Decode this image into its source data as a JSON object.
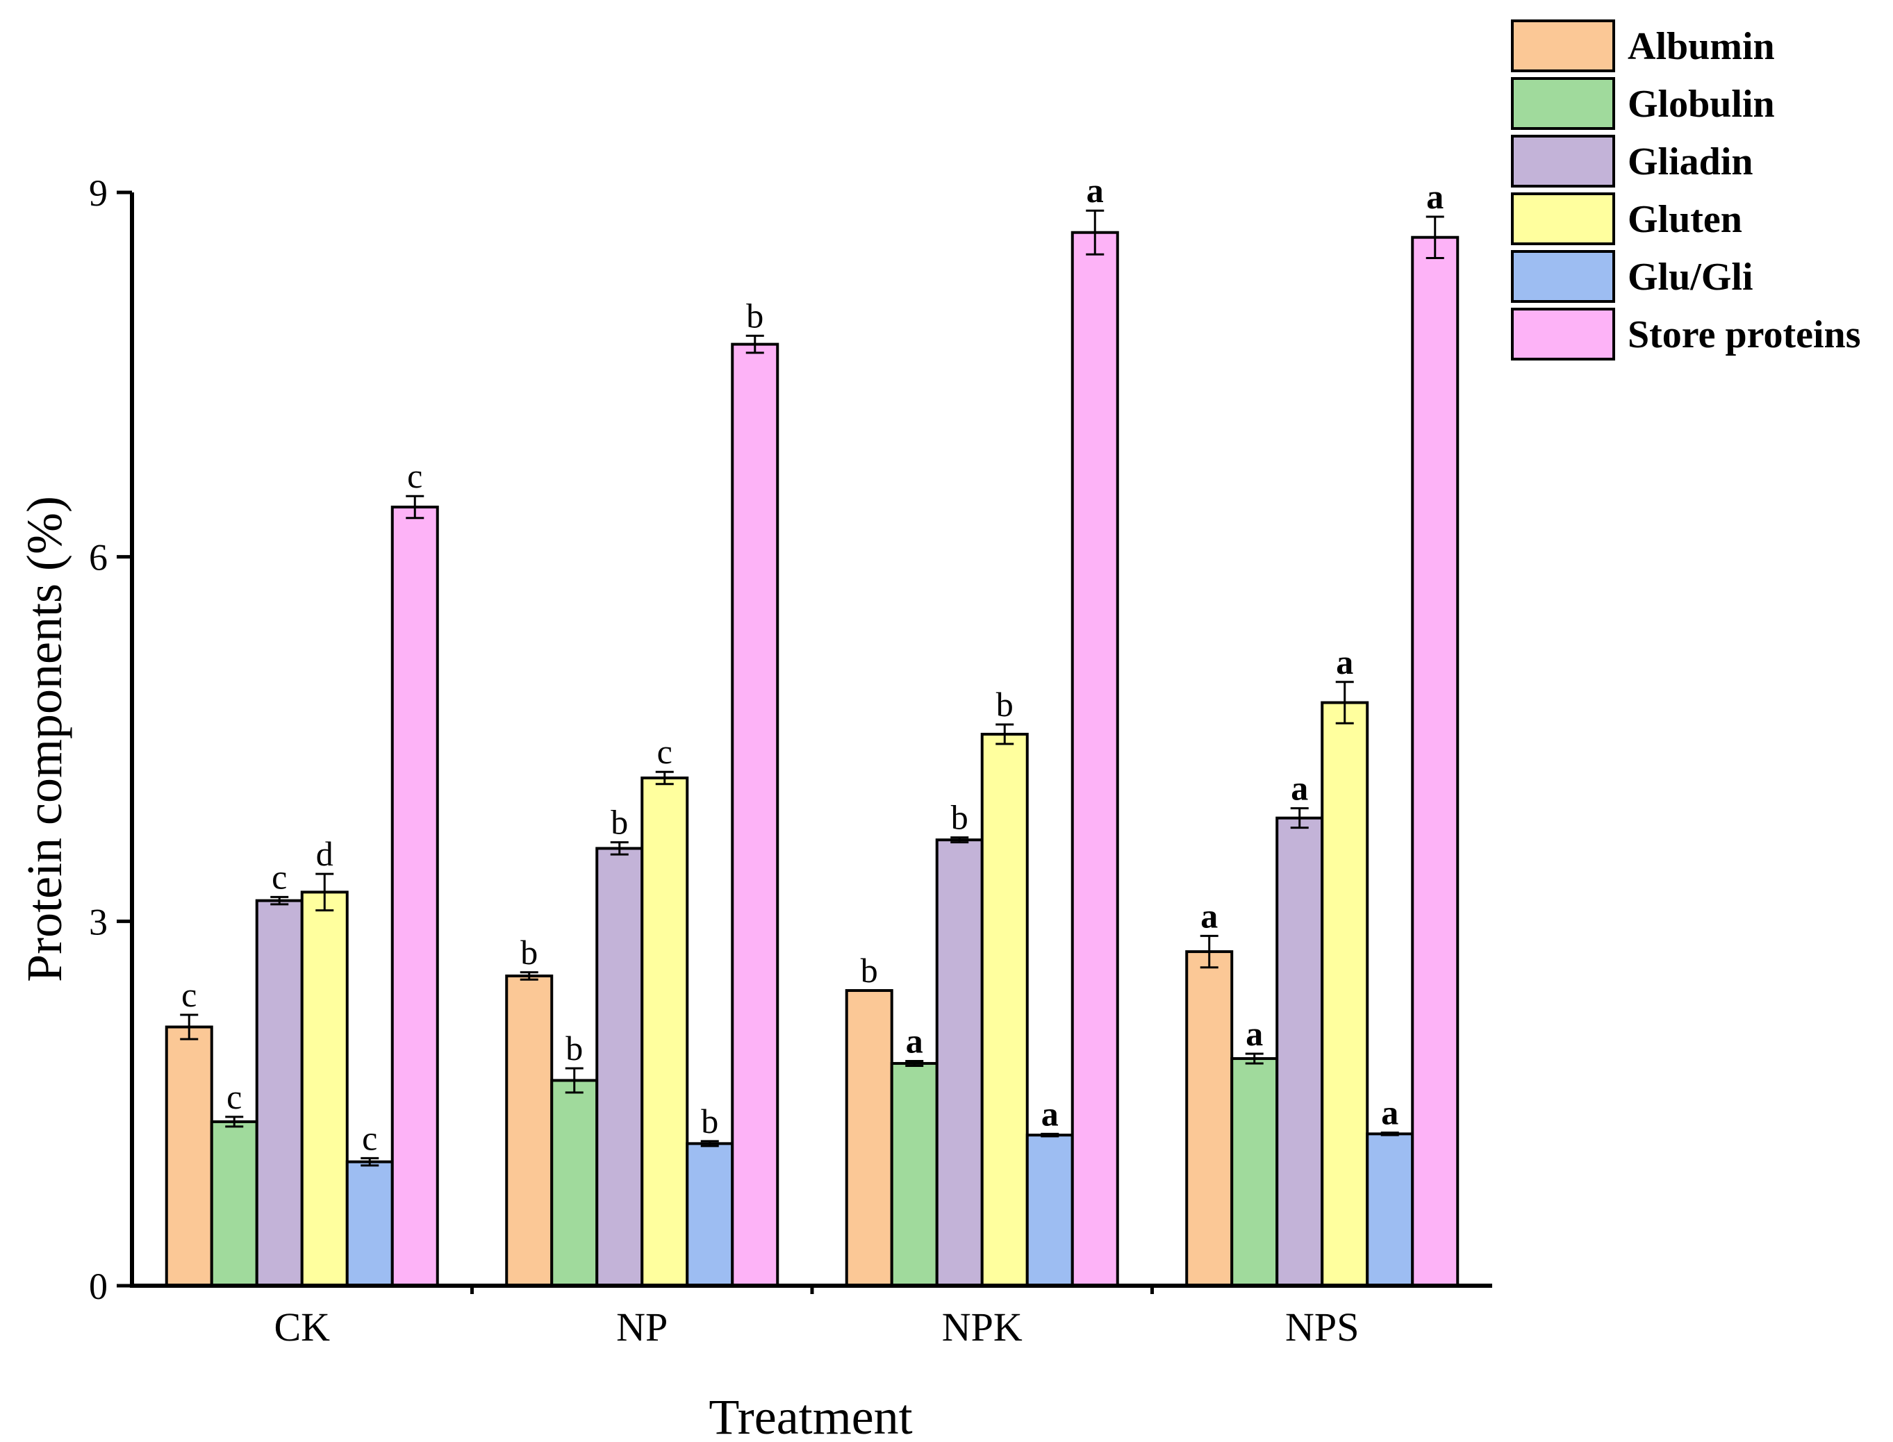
{
  "chart_data": {
    "type": "bar",
    "title": "",
    "xlabel": "Treatment",
    "ylabel": "Protein components (%)",
    "ylim": [
      0,
      9
    ],
    "yticks": [
      0,
      3,
      6,
      9
    ],
    "ytick_labels": [
      "0",
      "3",
      "6",
      "9"
    ],
    "categories": [
      "CK",
      "NP",
      "NPK",
      "NPS"
    ],
    "legend_position": "top-right",
    "series": [
      {
        "name": "Albumin",
        "color": "#FBC896",
        "values": [
          2.13,
          2.55,
          2.43,
          2.75
        ],
        "errors": [
          0.1,
          0.03,
          0.0,
          0.13
        ],
        "labels": [
          "c",
          "b",
          "b",
          "a"
        ]
      },
      {
        "name": "Globulin",
        "color": "#A0DA9C",
        "values": [
          1.35,
          1.69,
          1.83,
          1.87
        ],
        "errors": [
          0.04,
          0.1,
          0.02,
          0.04
        ],
        "labels": [
          "c",
          "b",
          "a",
          "a"
        ]
      },
      {
        "name": "Gliadin",
        "color": "#C3B3D8",
        "values": [
          3.17,
          3.6,
          3.67,
          3.85
        ],
        "errors": [
          0.03,
          0.05,
          0.02,
          0.08
        ],
        "labels": [
          "c",
          "b",
          "b",
          "a"
        ]
      },
      {
        "name": "Gluten",
        "color": "#FFFF9E",
        "values": [
          3.24,
          4.18,
          4.54,
          4.8
        ],
        "errors": [
          0.15,
          0.05,
          0.08,
          0.17
        ],
        "labels": [
          "d",
          "c",
          "b",
          "a"
        ]
      },
      {
        "name": "Glu/Gli",
        "color": "#9DBDF2",
        "values": [
          1.02,
          1.17,
          1.24,
          1.25
        ],
        "errors": [
          0.03,
          0.02,
          0.01,
          0.01
        ],
        "labels": [
          "c",
          "b",
          "a",
          "a"
        ]
      },
      {
        "name": "Store proteins",
        "color": "#FDB3F7",
        "values": [
          6.41,
          7.75,
          8.67,
          8.63
        ],
        "errors": [
          0.09,
          0.07,
          0.18,
          0.17
        ],
        "labels": [
          "c",
          "b",
          "a",
          "a"
        ]
      }
    ]
  }
}
